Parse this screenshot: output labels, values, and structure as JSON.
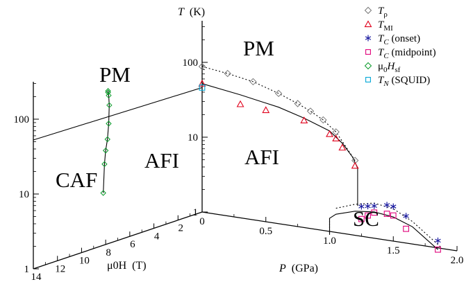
{
  "chart_data": {
    "type": "scatter",
    "title": "",
    "axes": {
      "temperature": {
        "label": "T (K)",
        "label_var": "T",
        "label_unit": "(K)",
        "scale": "log",
        "range": [
          1,
          300
        ],
        "ticks_pressure_panel": [
          "1",
          "10",
          "100"
        ],
        "ticks_field_panel": [
          "1",
          "10",
          "100"
        ]
      },
      "pressure": {
        "label": "P (GPa)",
        "label_var": "P",
        "label_unit": "(GPa)",
        "range": [
          0,
          2.0
        ],
        "ticks": [
          "0",
          "0.5",
          "1.0",
          "1.5",
          "2.0"
        ]
      },
      "field": {
        "label": "μ0H (T)",
        "label_var": "μ0H",
        "label_unit": "(T)",
        "range": [
          0,
          14
        ],
        "ticks": [
          "2",
          "4",
          "6",
          "8",
          "10",
          "12",
          "14"
        ]
      }
    },
    "regions": {
      "pm_pressure": "PM",
      "pm_field": "PM",
      "afi_pressure": "AFI",
      "afi_field": "AFI",
      "caf": "CAF",
      "sc": "SC"
    },
    "legend": {
      "placement": "top-right",
      "entries": [
        {
          "key": "t_rho",
          "label": "Tρ",
          "marker": "diamond",
          "color": "#777777"
        },
        {
          "key": "t_mi",
          "label": "TMI",
          "marker": "triangle",
          "color": "#e0001b"
        },
        {
          "key": "tc_onset",
          "label": "TC (onset)",
          "marker": "asterisk",
          "color": "#1a1aa0"
        },
        {
          "key": "tc_mid",
          "label": "TC (midpoint)",
          "marker": "square",
          "color": "#e0007a"
        },
        {
          "key": "h_sf",
          "label": "μ0Hsf",
          "marker": "diamond",
          "color": "#0a9a2a"
        },
        {
          "key": "t_n",
          "label": "TN (SQUID)",
          "marker": "square",
          "color": "#00a6d6"
        }
      ]
    },
    "pressure_series": [
      {
        "key": "t_rho",
        "name": "Tρ",
        "x": [
          0.0,
          0.2,
          0.4,
          0.6,
          0.75,
          0.85,
          0.95,
          1.05,
          1.2
        ],
        "y": [
          88,
          80,
          70,
          55,
          44,
          37,
          30,
          22,
          10
        ]
      },
      {
        "key": "t_mi",
        "name": "TMI",
        "x": [
          0.0,
          0.3,
          0.5,
          0.8,
          1.0,
          1.05,
          1.1,
          1.2
        ],
        "y": [
          52,
          33,
          31,
          27,
          20,
          18,
          14,
          8.5
        ]
      },
      {
        "key": "tc_onset",
        "name": "TC (onset)",
        "x": [
          1.25,
          1.3,
          1.35,
          1.45,
          1.5,
          1.6,
          1.85
        ],
        "y": [
          2.5,
          2.6,
          2.7,
          2.95,
          2.9,
          2.3,
          1.25
        ]
      },
      {
        "key": "tc_mid",
        "name": "TC (midpoint)",
        "x": [
          1.25,
          1.3,
          1.35,
          1.45,
          1.5,
          1.6,
          1.85
        ],
        "y": [
          1.7,
          1.95,
          2.2,
          2.25,
          2.2,
          1.55,
          0.95
        ]
      }
    ],
    "field_series": [
      {
        "key": "h_sf",
        "name": "μ0Hsf",
        "x": [
          7.8,
          7.8,
          7.75,
          7.7,
          7.75,
          7.85,
          8.0,
          8.1,
          8.2
        ],
        "y": [
          110,
          105,
          95,
          70,
          40,
          25,
          18,
          12,
          5
        ]
      },
      {
        "key": "t_n",
        "name": "TN (SQUID)",
        "x": [
          0.0
        ],
        "y": [
          46
        ]
      }
    ],
    "lines": {
      "t_mi_boundary": "solid",
      "t_rho_boundary": "dotted",
      "tc_midpoint_boundary": "solid",
      "tc_onset_boundary": "dotted",
      "spin_flop_boundary": "solid",
      "neel_boundary": "solid"
    }
  }
}
